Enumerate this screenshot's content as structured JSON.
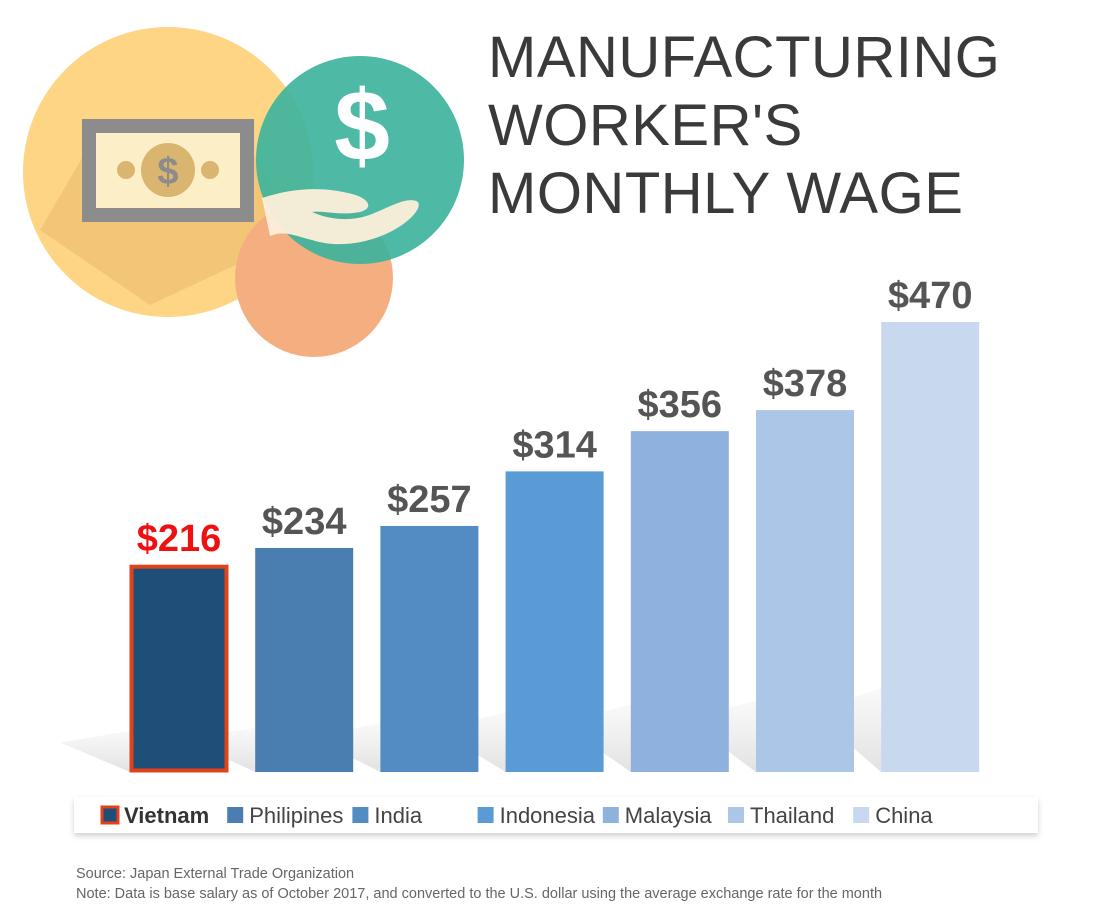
{
  "title_lines": [
    "MANUFACTURING",
    "WORKER'S",
    "MONTHLY WAGE"
  ],
  "source_line": "Source: Japan External Trade Organization",
  "note_line": "Note: Data is base salary as of October 2017, and converted to the U.S. dollar using the average exchange rate for the month",
  "illustration": {
    "icons": [
      "banknote-icon",
      "dollar-sign-icon",
      "hand-icon"
    ],
    "circle_colors": [
      "#FDD584",
      "#3BB39C",
      "#F5AE80"
    ],
    "banknote_color": "#8C8C8C",
    "coin_color": "#D9B570"
  },
  "chart_data": {
    "type": "bar",
    "categories": [
      "Vietnam",
      "Philipines",
      "India",
      "Indonesia",
      "Malaysia",
      "Thailand",
      "China"
    ],
    "values": [
      216,
      234,
      257,
      314,
      356,
      378,
      470
    ],
    "data_labels": [
      "$216",
      "$234",
      "$257",
      "$314",
      "$356",
      "$378",
      "$470"
    ],
    "title": "MANUFACTURING WORKER'S MONTHLY WAGE",
    "xlabel": "",
    "ylabel": "",
    "ylim": [
      0,
      470
    ],
    "grid": false,
    "legend": "bottom",
    "highlight": "Vietnam",
    "colors": [
      "#1F4E79",
      "#4A7EB0",
      "#528CC2",
      "#5B9BD5",
      "#8EB2DD",
      "#ACC6E7",
      "#C8D8EE"
    ],
    "highlight_border_color": "#E0431A",
    "highlight_label_color": "#EE1111",
    "label_color": "#555555"
  }
}
